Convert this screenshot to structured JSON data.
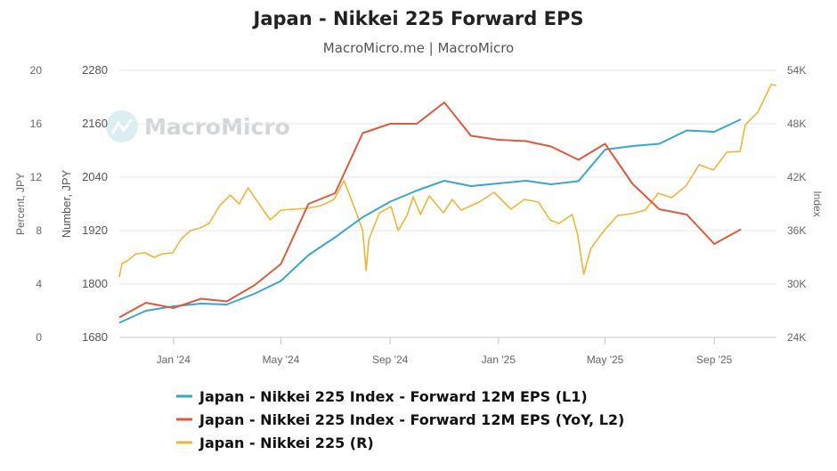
{
  "chart_data": {
    "type": "line",
    "title": "Japan - Nikkei 225 Forward EPS",
    "subtitle": "MacroMicro.me | MacroMicro",
    "watermark": "MacroMicro",
    "x_ticks": [
      "Jan '24",
      "May '24",
      "Sep '24",
      "Jan '25",
      "May '25",
      "Sep '25"
    ],
    "x_range": [
      "2023-11-01",
      "2025-11-10"
    ],
    "axes": {
      "l1": {
        "title": "Number, JPY",
        "min": 1680,
        "max": 2280,
        "ticks": [
          "1680",
          "1800",
          "1920",
          "2040",
          "2160",
          "2280"
        ]
      },
      "l2": {
        "title": "Percent, JPY",
        "min": 0,
        "max": 20,
        "ticks": [
          "0",
          "4",
          "8",
          "12",
          "16",
          "20"
        ]
      },
      "r": {
        "title": "Index",
        "min": 24000,
        "max": 54000,
        "ticks": [
          "24K",
          "30K",
          "36K",
          "42K",
          "48K",
          "54K"
        ]
      }
    },
    "grid": true,
    "legend_position": "bottom",
    "series": [
      {
        "name": "Japan - Nikkei 225 Index - Forward 12M EPS (L1)",
        "axis": "l1",
        "color": "#3aa6d0",
        "points": [
          [
            "2023-11-01",
            1713
          ],
          [
            "2023-12-01",
            1740
          ],
          [
            "2024-01-01",
            1750
          ],
          [
            "2024-02-01",
            1756
          ],
          [
            "2024-03-01",
            1754
          ],
          [
            "2024-04-01",
            1778
          ],
          [
            "2024-05-01",
            1807
          ],
          [
            "2024-06-01",
            1865
          ],
          [
            "2024-07-01",
            1905
          ],
          [
            "2024-08-01",
            1950
          ],
          [
            "2024-09-01",
            1985
          ],
          [
            "2024-10-01",
            2010
          ],
          [
            "2024-11-01",
            2032
          ],
          [
            "2024-12-01",
            2020
          ],
          [
            "2025-01-01",
            2026
          ],
          [
            "2025-02-01",
            2032
          ],
          [
            "2025-03-01",
            2024
          ],
          [
            "2025-04-01",
            2031
          ],
          [
            "2025-05-01",
            2102
          ],
          [
            "2025-06-01",
            2110
          ],
          [
            "2025-07-01",
            2115
          ],
          [
            "2025-08-01",
            2145
          ],
          [
            "2025-09-01",
            2142
          ],
          [
            "2025-10-01",
            2170
          ]
        ]
      },
      {
        "name": "Japan - Nikkei 225 Index - Forward 12M EPS (YoY, L2)",
        "axis": "l2",
        "color": "#de5a3e",
        "points": [
          [
            "2023-11-01",
            1.5
          ],
          [
            "2023-12-01",
            2.6
          ],
          [
            "2024-01-01",
            2.2
          ],
          [
            "2024-02-01",
            2.9
          ],
          [
            "2024-03-01",
            2.7
          ],
          [
            "2024-04-01",
            3.9
          ],
          [
            "2024-05-01",
            5.5
          ],
          [
            "2024-06-01",
            10.0
          ],
          [
            "2024-07-01",
            10.8
          ],
          [
            "2024-08-01",
            15.3
          ],
          [
            "2024-09-01",
            16.0
          ],
          [
            "2024-10-01",
            16.0
          ],
          [
            "2024-11-01",
            17.6
          ],
          [
            "2024-12-01",
            15.1
          ],
          [
            "2025-01-01",
            14.8
          ],
          [
            "2025-02-01",
            14.7
          ],
          [
            "2025-03-01",
            14.3
          ],
          [
            "2025-04-01",
            13.3
          ],
          [
            "2025-05-01",
            14.5
          ],
          [
            "2025-06-01",
            11.5
          ],
          [
            "2025-07-01",
            9.6
          ],
          [
            "2025-08-01",
            9.2
          ],
          [
            "2025-09-01",
            7.0
          ],
          [
            "2025-10-01",
            8.1
          ]
        ]
      },
      {
        "name": "Japan - Nikkei 225 (R)",
        "axis": "r",
        "color": "#f0b437",
        "points": [
          [
            "2023-11-01",
            30800
          ],
          [
            "2023-11-04",
            32300
          ],
          [
            "2023-11-10",
            32600
          ],
          [
            "2023-11-20",
            33400
          ],
          [
            "2023-11-30",
            33500
          ],
          [
            "2023-12-10",
            33000
          ],
          [
            "2023-12-20",
            33400
          ],
          [
            "2023-12-31",
            33500
          ],
          [
            "2024-01-10",
            35100
          ],
          [
            "2024-01-20",
            36000
          ],
          [
            "2024-01-31",
            36300
          ],
          [
            "2024-02-10",
            36800
          ],
          [
            "2024-02-22",
            38800
          ],
          [
            "2024-03-05",
            40000
          ],
          [
            "2024-03-15",
            39000
          ],
          [
            "2024-03-25",
            40800
          ],
          [
            "2024-04-05",
            39200
          ],
          [
            "2024-04-19",
            37200
          ],
          [
            "2024-05-01",
            38300
          ],
          [
            "2024-05-15",
            38400
          ],
          [
            "2024-05-31",
            38500
          ],
          [
            "2024-06-15",
            38800
          ],
          [
            "2024-06-30",
            39500
          ],
          [
            "2024-07-11",
            41600
          ],
          [
            "2024-07-25",
            38000
          ],
          [
            "2024-08-01",
            36000
          ],
          [
            "2024-08-05",
            31500
          ],
          [
            "2024-08-08",
            35000
          ],
          [
            "2024-08-20",
            38000
          ],
          [
            "2024-09-02",
            38700
          ],
          [
            "2024-09-10",
            36000
          ],
          [
            "2024-09-20",
            37700
          ],
          [
            "2024-09-27",
            39800
          ],
          [
            "2024-10-05",
            37800
          ],
          [
            "2024-10-15",
            39900
          ],
          [
            "2024-10-31",
            38000
          ],
          [
            "2024-11-10",
            39500
          ],
          [
            "2024-11-20",
            38300
          ],
          [
            "2024-12-10",
            39200
          ],
          [
            "2024-12-27",
            40300
          ],
          [
            "2025-01-15",
            38400
          ],
          [
            "2025-01-30",
            39500
          ],
          [
            "2025-02-15",
            39200
          ],
          [
            "2025-02-28",
            37200
          ],
          [
            "2025-03-10",
            36800
          ],
          [
            "2025-03-25",
            37800
          ],
          [
            "2025-03-31",
            35600
          ],
          [
            "2025-04-07",
            31100
          ],
          [
            "2025-04-15",
            34000
          ],
          [
            "2025-04-30",
            36000
          ],
          [
            "2025-05-15",
            37700
          ],
          [
            "2025-05-31",
            37900
          ],
          [
            "2025-06-15",
            38300
          ],
          [
            "2025-06-30",
            40200
          ],
          [
            "2025-07-15",
            39700
          ],
          [
            "2025-07-31",
            41000
          ],
          [
            "2025-08-15",
            43400
          ],
          [
            "2025-08-31",
            42800
          ],
          [
            "2025-09-15",
            44800
          ],
          [
            "2025-09-30",
            44900
          ],
          [
            "2025-10-06",
            47900
          ],
          [
            "2025-10-20",
            49300
          ],
          [
            "2025-11-04",
            52400
          ],
          [
            "2025-11-10",
            52300
          ]
        ]
      }
    ]
  }
}
